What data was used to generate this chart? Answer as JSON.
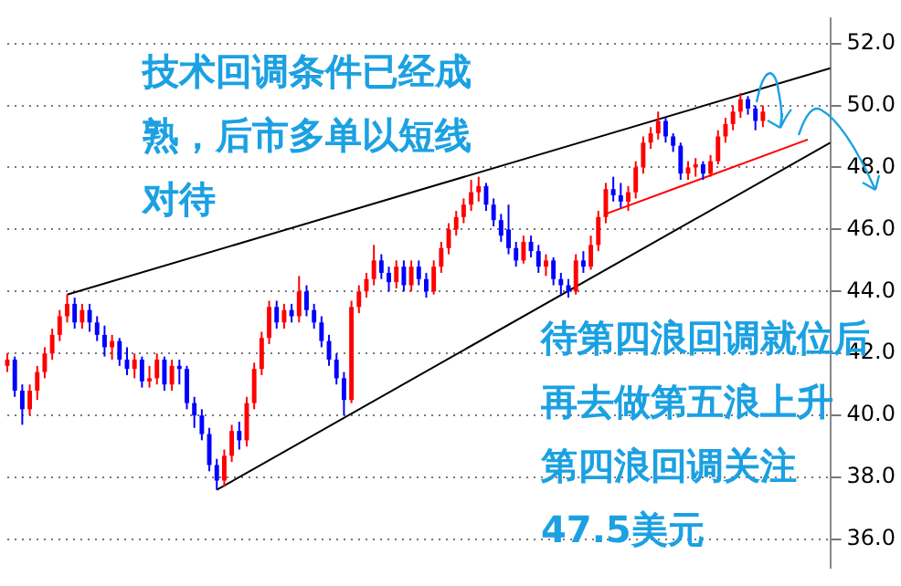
{
  "chart_data": {
    "type": "candlestick",
    "categories": [
      null,
      null,
      null,
      null,
      null,
      null,
      null,
      null,
      null,
      null,
      null,
      null,
      null,
      null,
      null,
      null,
      null,
      null,
      null,
      null,
      null,
      null,
      null,
      null,
      null,
      null,
      null,
      null,
      null,
      null,
      null,
      null,
      null,
      null,
      null,
      null,
      null,
      null,
      null,
      null,
      null,
      null,
      null,
      null,
      null,
      null,
      null,
      null,
      null,
      null,
      null,
      null,
      null,
      null,
      null,
      null,
      null,
      null,
      null,
      null,
      null,
      null,
      null,
      null,
      null,
      null,
      null,
      null,
      null,
      null,
      null,
      null,
      null,
      null,
      null,
      null,
      null,
      null,
      null,
      null,
      null,
      null,
      null,
      null,
      null,
      null,
      null,
      null,
      null,
      null,
      null,
      null,
      null,
      null,
      null,
      null,
      null,
      null,
      null,
      null,
      null,
      null,
      null,
      null,
      null,
      null,
      null,
      null,
      null,
      null,
      null
    ],
    "ohlc": [
      [
        41.6,
        42.0,
        41.4,
        41.8
      ],
      [
        41.8,
        41.9,
        40.6,
        40.8
      ],
      [
        40.8,
        41.0,
        39.7,
        40.2
      ],
      [
        40.2,
        41.0,
        40.0,
        40.8
      ],
      [
        40.8,
        41.6,
        40.5,
        41.4
      ],
      [
        41.4,
        42.2,
        41.2,
        42.0
      ],
      [
        42.0,
        42.8,
        41.8,
        42.6
      ],
      [
        42.6,
        43.4,
        42.4,
        43.2
      ],
      [
        43.2,
        43.9,
        43.0,
        43.6
      ],
      [
        43.6,
        43.8,
        42.8,
        43.0
      ],
      [
        43.0,
        43.6,
        42.8,
        43.4
      ],
      [
        43.4,
        43.6,
        42.7,
        43.0
      ],
      [
        43.0,
        43.2,
        42.4,
        42.6
      ],
      [
        42.6,
        42.9,
        41.9,
        42.2
      ],
      [
        42.2,
        42.6,
        41.8,
        42.4
      ],
      [
        42.4,
        42.5,
        41.6,
        41.8
      ],
      [
        41.8,
        42.2,
        41.3,
        41.5
      ],
      [
        41.5,
        42.0,
        41.2,
        41.8
      ],
      [
        41.8,
        41.9,
        40.9,
        41.1
      ],
      [
        41.1,
        41.6,
        40.9,
        41.2
      ],
      [
        41.2,
        42.0,
        41.0,
        41.8
      ],
      [
        41.8,
        41.9,
        40.8,
        41.0
      ],
      [
        41.0,
        41.8,
        40.8,
        41.6
      ],
      [
        41.6,
        41.8,
        41.0,
        41.5
      ],
      [
        41.5,
        41.6,
        40.2,
        40.4
      ],
      [
        40.4,
        40.6,
        39.6,
        40.0
      ],
      [
        40.0,
        40.2,
        39.2,
        39.4
      ],
      [
        39.4,
        39.6,
        38.2,
        38.4
      ],
      [
        38.4,
        38.6,
        37.6,
        37.9
      ],
      [
        37.9,
        38.9,
        37.7,
        38.7
      ],
      [
        38.7,
        39.7,
        38.5,
        39.5
      ],
      [
        39.5,
        39.8,
        38.9,
        39.2
      ],
      [
        39.2,
        40.6,
        39.0,
        40.4
      ],
      [
        40.4,
        41.7,
        40.2,
        41.5
      ],
      [
        41.5,
        42.7,
        41.3,
        42.5
      ],
      [
        42.5,
        43.7,
        42.3,
        43.5
      ],
      [
        43.5,
        43.7,
        42.8,
        43.0
      ],
      [
        43.0,
        43.6,
        42.8,
        43.4
      ],
      [
        43.4,
        43.6,
        43.0,
        43.2
      ],
      [
        43.2,
        44.5,
        43.0,
        44.0
      ],
      [
        44.0,
        44.2,
        43.2,
        43.4
      ],
      [
        43.4,
        43.6,
        42.8,
        43.0
      ],
      [
        43.0,
        43.2,
        42.2,
        42.4
      ],
      [
        42.4,
        42.6,
        41.6,
        41.8
      ],
      [
        41.8,
        42.0,
        41.0,
        41.2
      ],
      [
        41.2,
        41.4,
        40.0,
        40.5
      ],
      [
        40.5,
        43.7,
        40.4,
        43.5
      ],
      [
        43.5,
        44.2,
        43.3,
        44.0
      ],
      [
        44.0,
        44.6,
        43.8,
        44.4
      ],
      [
        44.4,
        45.5,
        44.2,
        45.0
      ],
      [
        45.0,
        45.2,
        44.4,
        44.6
      ],
      [
        44.6,
        44.8,
        44.0,
        44.3
      ],
      [
        44.3,
        45.0,
        44.1,
        44.8
      ],
      [
        44.8,
        45.0,
        44.0,
        44.2
      ],
      [
        44.2,
        45.0,
        44.0,
        44.8
      ],
      [
        44.8,
        45.0,
        44.2,
        44.4
      ],
      [
        44.4,
        44.6,
        43.8,
        44.0
      ],
      [
        44.0,
        45.0,
        43.9,
        44.8
      ],
      [
        44.8,
        45.6,
        44.6,
        45.4
      ],
      [
        45.4,
        46.2,
        45.2,
        46.0
      ],
      [
        46.0,
        46.6,
        45.8,
        46.4
      ],
      [
        46.4,
        47.0,
        46.2,
        46.8
      ],
      [
        46.8,
        47.6,
        46.6,
        47.2
      ],
      [
        47.2,
        47.7,
        46.9,
        47.4
      ],
      [
        47.4,
        47.5,
        46.6,
        46.8
      ],
      [
        46.8,
        47.0,
        46.1,
        46.3
      ],
      [
        46.3,
        46.5,
        45.6,
        45.8
      ],
      [
        46.0,
        46.8,
        45.2,
        45.4
      ],
      [
        45.4,
        45.6,
        44.8,
        45.0
      ],
      [
        45.0,
        45.8,
        44.9,
        45.6
      ],
      [
        45.6,
        45.8,
        45.1,
        45.3
      ],
      [
        45.3,
        45.5,
        44.6,
        44.8
      ],
      [
        44.8,
        45.2,
        44.5,
        45.0
      ],
      [
        45.0,
        45.1,
        44.2,
        44.4
      ],
      [
        44.4,
        44.6,
        43.9,
        44.2
      ],
      [
        44.2,
        44.4,
        43.8,
        44.0
      ],
      [
        44.0,
        45.2,
        43.9,
        45.0
      ],
      [
        45.0,
        45.3,
        44.6,
        44.8
      ],
      [
        44.8,
        45.8,
        44.7,
        45.5
      ],
      [
        45.5,
        46.6,
        45.3,
        46.4
      ],
      [
        46.4,
        47.5,
        46.2,
        47.3
      ],
      [
        47.3,
        47.7,
        46.9,
        47.1
      ],
      [
        47.1,
        47.5,
        46.7,
        46.9
      ],
      [
        46.9,
        47.4,
        46.6,
        47.2
      ],
      [
        47.2,
        48.2,
        47.0,
        48.0
      ],
      [
        48.0,
        49.0,
        47.8,
        48.8
      ],
      [
        48.8,
        49.3,
        48.6,
        49.1
      ],
      [
        49.1,
        49.8,
        48.9,
        49.5
      ],
      [
        49.5,
        49.6,
        48.8,
        49.0
      ],
      [
        49.0,
        49.1,
        48.5,
        48.7
      ],
      [
        48.7,
        48.8,
        47.6,
        47.8
      ],
      [
        47.8,
        48.2,
        47.6,
        48.0
      ],
      [
        48.0,
        48.3,
        47.7,
        48.1
      ],
      [
        48.1,
        48.2,
        47.6,
        47.8
      ],
      [
        47.8,
        48.4,
        47.7,
        48.2
      ],
      [
        48.2,
        49.2,
        48.1,
        49.0
      ],
      [
        49.0,
        49.6,
        48.8,
        49.4
      ],
      [
        49.4,
        50.0,
        49.2,
        49.8
      ],
      [
        49.8,
        50.4,
        49.6,
        50.2
      ],
      [
        50.2,
        50.3,
        49.7,
        49.9
      ],
      [
        49.9,
        50.0,
        49.2,
        49.5
      ],
      [
        49.5,
        50.0,
        49.3,
        49.8
      ],
      null,
      null,
      null,
      null,
      null,
      null,
      null,
      null,
      null
    ],
    "colors": [
      "#ff0000",
      "#0000ff",
      "#0000ff",
      "#ff0000",
      "#ff0000",
      "#ff0000",
      "#ff0000",
      "#ff0000",
      "#ff0000",
      "#0000ff",
      "#ff0000",
      "#0000ff",
      "#0000ff",
      "#0000ff",
      "#ff0000",
      "#0000ff",
      "#0000ff",
      "#ff0000",
      "#0000ff",
      "#ff0000",
      "#ff0000",
      "#0000ff",
      "#ff0000",
      "#0000ff",
      "#0000ff",
      "#0000ff",
      "#0000ff",
      "#0000ff",
      "#0000ff",
      "#ff0000",
      "#ff0000",
      "#0000ff",
      "#ff0000",
      "#ff0000",
      "#ff0000",
      "#ff0000",
      "#0000ff",
      "#ff0000",
      "#0000ff",
      "#ff0000",
      "#0000ff",
      "#0000ff",
      "#0000ff",
      "#0000ff",
      "#0000ff",
      "#0000ff",
      "#ff0000",
      "#ff0000",
      "#ff0000",
      "#ff0000",
      "#0000ff",
      "#0000ff",
      "#ff0000",
      "#0000ff",
      "#ff0000",
      "#0000ff",
      "#0000ff",
      "#ff0000",
      "#ff0000",
      "#ff0000",
      "#ff0000",
      "#ff0000",
      "#ff0000",
      "#ff0000",
      "#0000ff",
      "#0000ff",
      "#0000ff",
      "#0000ff",
      "#0000ff",
      "#ff0000",
      "#0000ff",
      "#0000ff",
      "#ff0000",
      "#0000ff",
      "#0000ff",
      "#0000ff",
      "#ff0000",
      "#0000ff",
      "#ff0000",
      "#ff0000",
      "#ff0000",
      "#0000ff",
      "#0000ff",
      "#ff0000",
      "#ff0000",
      "#ff0000",
      "#ff0000",
      "#ff0000",
      "#0000ff",
      "#0000ff",
      "#0000ff",
      "#ff0000",
      "#ff0000",
      "#0000ff",
      "#ff0000",
      "#ff0000",
      "#ff0000",
      "#ff0000",
      "#ff0000",
      "#0000ff",
      "#0000ff",
      "#ff0000",
      null,
      null,
      null,
      null,
      null,
      null,
      null,
      null,
      null
    ],
    "series": [
      {
        "type": "line",
        "color": "#000000",
        "values": [
          null,
          null,
          null,
          null,
          null,
          null,
          null,
          null,
          43.9,
          null,
          null,
          null,
          null,
          null,
          null,
          null,
          null,
          null,
          null,
          null,
          null,
          null,
          null,
          null,
          null,
          null,
          null,
          null,
          null,
          null,
          null,
          null,
          null,
          null,
          null,
          null,
          null,
          null,
          null,
          null,
          null,
          null,
          null,
          null,
          null,
          null,
          null,
          null,
          null,
          null,
          null,
          null,
          null,
          null,
          null,
          null,
          null,
          null,
          null,
          null,
          null,
          null,
          null,
          null,
          null,
          null,
          null,
          null,
          null,
          null,
          null,
          null,
          null,
          null,
          null,
          null,
          null,
          null,
          null,
          null,
          null,
          null,
          null,
          null,
          null,
          null,
          null,
          null,
          null,
          null,
          null,
          null,
          null,
          null,
          null,
          null,
          null,
          null,
          null,
          null,
          null,
          null,
          null,
          null,
          null,
          null,
          null,
          null,
          null,
          null,
          51.2
        ]
      },
      {
        "type": "line",
        "color": "#000000",
        "values": [
          null,
          null,
          null,
          null,
          null,
          null,
          null,
          null,
          null,
          null,
          null,
          null,
          null,
          null,
          null,
          null,
          null,
          null,
          null,
          null,
          null,
          null,
          null,
          null,
          null,
          null,
          null,
          null,
          37.6,
          null,
          null,
          null,
          null,
          null,
          null,
          null,
          null,
          null,
          null,
          null,
          null,
          null,
          null,
          null,
          null,
          null,
          null,
          null,
          null,
          null,
          null,
          null,
          null,
          null,
          null,
          null,
          null,
          null,
          null,
          null,
          null,
          null,
          null,
          null,
          null,
          null,
          null,
          null,
          null,
          null,
          null,
          null,
          null,
          null,
          null,
          null,
          null,
          null,
          null,
          null,
          null,
          null,
          null,
          null,
          null,
          null,
          null,
          null,
          null,
          null,
          null,
          null,
          null,
          null,
          null,
          null,
          null,
          null,
          null,
          null,
          null,
          null,
          null,
          null,
          null,
          null,
          null,
          null,
          null,
          null,
          48.8
        ]
      },
      {
        "type": "line",
        "color": "#ff0000",
        "values": [
          null,
          null,
          null,
          null,
          null,
          null,
          null,
          null,
          null,
          null,
          null,
          null,
          null,
          null,
          null,
          null,
          null,
          null,
          null,
          null,
          null,
          null,
          null,
          null,
          null,
          null,
          null,
          null,
          null,
          null,
          null,
          null,
          null,
          null,
          null,
          null,
          null,
          null,
          null,
          null,
          null,
          null,
          null,
          null,
          null,
          null,
          null,
          null,
          null,
          null,
          null,
          null,
          null,
          null,
          null,
          null,
          null,
          null,
          null,
          null,
          null,
          null,
          null,
          null,
          null,
          null,
          null,
          null,
          null,
          null,
          null,
          null,
          null,
          null,
          null,
          null,
          null,
          null,
          null,
          null,
          46.5,
          null,
          null,
          null,
          null,
          null,
          null,
          null,
          null,
          null,
          null,
          null,
          null,
          null,
          null,
          null,
          null,
          null,
          null,
          null,
          null,
          null,
          null,
          null,
          null,
          null,
          null,
          48.9,
          null,
          null,
          null
        ]
      }
    ],
    "ylim": [
      35.1,
      52.8
    ],
    "yticks": [
      {
        "value": 36,
        "label": "36.0"
      },
      {
        "value": 38,
        "label": "38.0"
      },
      {
        "value": 40,
        "label": "40.0"
      },
      {
        "value": 42,
        "label": "42.0"
      },
      {
        "value": 44,
        "label": "44.0"
      },
      {
        "value": 46,
        "label": "46.0"
      },
      {
        "value": 48,
        "label": "48.0"
      },
      {
        "value": 50,
        "label": "50.0"
      },
      {
        "value": 52,
        "label": "52.0"
      }
    ],
    "grid": "y",
    "tick_labels": "y",
    "annotations": [
      "技术回调条件已经成熟，后市多单以短线对待",
      "待第四浪回调就位后再去做第五浪上升",
      "第四浪回调关注47.5美元"
    ]
  }
}
